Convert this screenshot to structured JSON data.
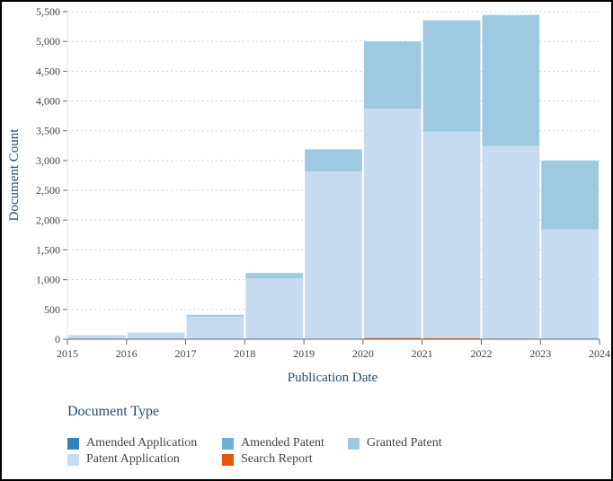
{
  "chart_data": {
    "type": "bar",
    "stacked": true,
    "xlabel": "Publication Date",
    "ylabel": "Document Count",
    "x_ticks": [
      "2015",
      "2016",
      "2017",
      "2018",
      "2019",
      "2020",
      "2021",
      "2022",
      "2023",
      "2024"
    ],
    "bins": [
      [
        2015,
        2016
      ],
      [
        2016,
        2017
      ],
      [
        2017,
        2018
      ],
      [
        2018,
        2019
      ],
      [
        2019,
        2020
      ],
      [
        2020,
        2021
      ],
      [
        2021,
        2022
      ],
      [
        2022,
        2023
      ],
      [
        2023,
        2024
      ]
    ],
    "ylim": [
      0,
      5500
    ],
    "y_ticks": [
      "0",
      "500",
      "1,000",
      "1,500",
      "2,000",
      "2,500",
      "3,000",
      "3,500",
      "4,000",
      "4,500",
      "5,000",
      "5,500"
    ],
    "grid": true,
    "legend_title": "Document Type",
    "legend_position": "bottom",
    "series": [
      {
        "name": "Amended Application",
        "color": "#3182bd",
        "values": [
          0,
          0,
          0,
          0,
          0,
          0,
          0,
          0,
          0
        ]
      },
      {
        "name": "Amended Patent",
        "color": "#6baed6",
        "values": [
          0,
          0,
          0,
          0,
          0,
          0,
          0,
          0,
          0
        ]
      },
      {
        "name": "Granted Patent",
        "color": "#9ecae1",
        "values": [
          5,
          5,
          30,
          90,
          370,
          1130,
          1870,
          2200,
          1160
        ]
      },
      {
        "name": "Patent Application",
        "color": "#c6dbef",
        "values": [
          60,
          105,
          380,
          1020,
          2810,
          3850,
          3470,
          3235,
          1835
        ]
      },
      {
        "name": "Search Report",
        "color": "#e6550d",
        "values": [
          0,
          0,
          0,
          2,
          8,
          20,
          15,
          10,
          5
        ]
      }
    ]
  }
}
